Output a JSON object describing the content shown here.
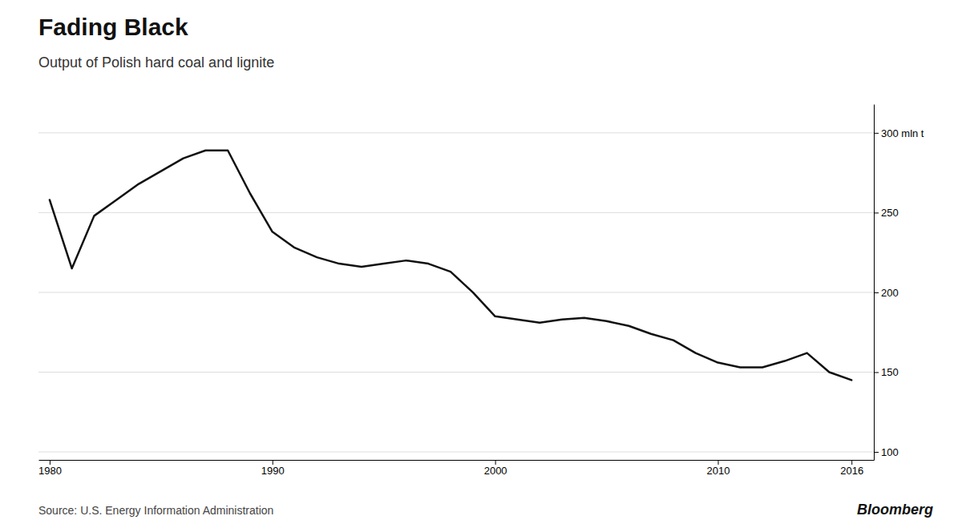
{
  "chart_data": {
    "type": "line",
    "title": "Fading Black",
    "subtitle": "Output of Polish hard coal and lignite",
    "annotations": [
      "Source: U.S. Energy Information Administration",
      "Bloomberg"
    ],
    "color": "#111111",
    "x": [
      1980,
      1981,
      1982,
      1983,
      1984,
      1985,
      1986,
      1987,
      1988,
      1989,
      1990,
      1991,
      1992,
      1993,
      1994,
      1995,
      1996,
      1997,
      1998,
      1999,
      2000,
      2001,
      2002,
      2003,
      2004,
      2005,
      2006,
      2007,
      2008,
      2009,
      2010,
      2011,
      2012,
      2013,
      2014,
      2015,
      2016
    ],
    "values": [
      258,
      215,
      248,
      258,
      268,
      276,
      284,
      289,
      289,
      262,
      238,
      228,
      222,
      218,
      216,
      218,
      220,
      218,
      213,
      200,
      185,
      183,
      181,
      183,
      184,
      182,
      179,
      174,
      170,
      162,
      156,
      153,
      153,
      157,
      162,
      150,
      145
    ],
    "xlim": [
      1979.5,
      2017
    ],
    "xticks": [
      1980,
      1990,
      2000,
      2010,
      2016
    ],
    "ylim": [
      95,
      318
    ],
    "yticks": [
      100,
      150,
      200,
      250,
      {
        "value": 300,
        "label": "300 mln t"
      }
    ],
    "grid": true
  }
}
